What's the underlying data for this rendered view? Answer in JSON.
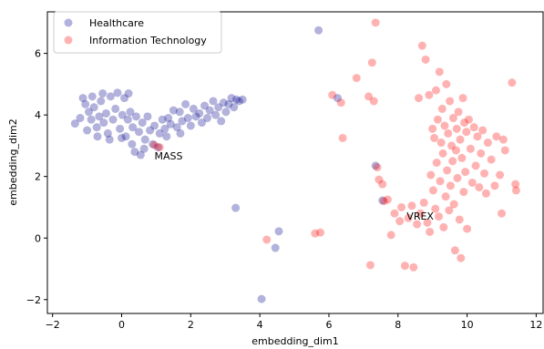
{
  "chart_data": {
    "type": "scatter",
    "title": "",
    "xlabel": "embedding_dim1",
    "ylabel": "embedding_dim2",
    "xlim": [
      -2.15,
      12.2
    ],
    "ylim": [
      -2.45,
      7.35
    ],
    "x_ticks": [
      -2,
      0,
      2,
      4,
      6,
      8,
      10,
      12
    ],
    "y_ticks": [
      -2,
      0,
      2,
      4,
      6
    ],
    "grid": false,
    "legend_position": "top-left",
    "series": [
      {
        "name": "Healthcare",
        "color": "#00008b",
        "alpha": 0.3,
        "points": [
          [
            -1.35,
            3.72
          ],
          [
            -1.2,
            3.9
          ],
          [
            -1.12,
            4.55
          ],
          [
            -1.05,
            4.35
          ],
          [
            -0.95,
            4.1
          ],
          [
            -0.88,
            3.85
          ],
          [
            -0.8,
            4.25
          ],
          [
            -0.72,
            3.6
          ],
          [
            -0.65,
            3.95
          ],
          [
            -0.6,
            4.45
          ],
          [
            -0.52,
            3.75
          ],
          [
            -0.45,
            4.05
          ],
          [
            -0.4,
            3.4
          ],
          [
            -0.32,
            4.6
          ],
          [
            -0.25,
            3.85
          ],
          [
            -0.18,
            4.2
          ],
          [
            -0.12,
            4.72
          ],
          [
            -0.05,
            3.55
          ],
          [
            0.02,
            4.0
          ],
          [
            0.08,
            4.55
          ],
          [
            0.12,
            3.3
          ],
          [
            0.18,
            3.85
          ],
          [
            0.25,
            4.1
          ],
          [
            0.32,
            3.6
          ],
          [
            0.38,
            2.8
          ],
          [
            0.42,
            3.95
          ],
          [
            0.5,
            3.45
          ],
          [
            0.55,
            2.7
          ],
          [
            0.6,
            3.75
          ],
          [
            0.68,
            3.2
          ],
          [
            0.75,
            3.95
          ],
          [
            0.82,
            3.5
          ],
          [
            0.9,
            3.05
          ],
          [
            0.95,
            3.65
          ],
          [
            1.05,
            2.95
          ],
          [
            1.1,
            3.4
          ],
          [
            1.18,
            3.85
          ],
          [
            1.25,
            3.55
          ],
          [
            1.35,
            3.9
          ],
          [
            1.42,
            3.7
          ],
          [
            1.5,
            4.15
          ],
          [
            1.6,
            3.6
          ],
          [
            1.68,
            4.1
          ],
          [
            1.75,
            3.8
          ],
          [
            1.85,
            4.35
          ],
          [
            1.92,
            3.9
          ],
          [
            2.0,
            3.65
          ],
          [
            2.08,
            4.2
          ],
          [
            2.15,
            3.95
          ],
          [
            2.25,
            4.05
          ],
          [
            2.32,
            3.75
          ],
          [
            2.4,
            4.3
          ],
          [
            2.48,
            3.9
          ],
          [
            2.55,
            4.15
          ],
          [
            2.65,
            4.45
          ],
          [
            2.72,
            4.0
          ],
          [
            2.8,
            4.25
          ],
          [
            2.88,
            3.8
          ],
          [
            2.95,
            4.4
          ],
          [
            3.02,
            4.1
          ],
          [
            3.1,
            4.35
          ],
          [
            3.18,
            4.55
          ],
          [
            3.25,
            4.25
          ],
          [
            3.32,
            4.5
          ],
          [
            3.4,
            4.45
          ],
          [
            3.5,
            4.5
          ],
          [
            -1.0,
            3.5
          ],
          [
            -0.7,
            3.3
          ],
          [
            -0.35,
            3.2
          ],
          [
            0.0,
            3.25
          ],
          [
            0.3,
            3.05
          ],
          [
            0.65,
            2.9
          ],
          [
            -0.55,
            4.7
          ],
          [
            0.2,
            4.7
          ],
          [
            -0.85,
            4.6
          ],
          [
            1.3,
            3.3
          ],
          [
            1.7,
            3.4
          ],
          [
            3.3,
            0.98
          ],
          [
            4.05,
            -1.98
          ],
          [
            4.45,
            -0.32
          ],
          [
            4.55,
            0.22
          ],
          [
            5.7,
            6.75
          ],
          [
            6.25,
            4.55
          ],
          [
            7.35,
            2.35
          ],
          [
            7.55,
            1.22
          ]
        ]
      },
      {
        "name": "Information Technology",
        "color": "#ff0000",
        "alpha": 0.3,
        "points": [
          [
            0.95,
            3.02
          ],
          [
            1.1,
            2.95
          ],
          [
            4.2,
            -0.05
          ],
          [
            5.6,
            0.15
          ],
          [
            5.75,
            0.18
          ],
          [
            6.1,
            4.65
          ],
          [
            6.35,
            4.4
          ],
          [
            6.4,
            3.25
          ],
          [
            6.8,
            5.2
          ],
          [
            7.15,
            4.6
          ],
          [
            7.2,
            -0.88
          ],
          [
            7.25,
            5.7
          ],
          [
            7.3,
            4.45
          ],
          [
            7.35,
            7.0
          ],
          [
            7.4,
            2.3
          ],
          [
            7.45,
            1.9
          ],
          [
            7.55,
            1.75
          ],
          [
            7.6,
            1.2
          ],
          [
            7.7,
            1.25
          ],
          [
            7.8,
            0.1
          ],
          [
            7.9,
            0.8
          ],
          [
            8.05,
            0.55
          ],
          [
            8.1,
            1.0
          ],
          [
            8.2,
            -0.9
          ],
          [
            8.3,
            0.65
          ],
          [
            8.4,
            1.05
          ],
          [
            8.45,
            -0.95
          ],
          [
            8.55,
            0.45
          ],
          [
            8.6,
            4.55
          ],
          [
            8.65,
            0.8
          ],
          [
            8.7,
            6.25
          ],
          [
            8.75,
            1.15
          ],
          [
            8.8,
            5.8
          ],
          [
            8.85,
            0.5
          ],
          [
            8.9,
            4.65
          ],
          [
            8.92,
            0.2
          ],
          [
            8.95,
            2.05
          ],
          [
            9.0,
            3.55
          ],
          [
            9.02,
            1.55
          ],
          [
            9.05,
            3.25
          ],
          [
            9.08,
            0.95
          ],
          [
            9.1,
            4.8
          ],
          [
            9.12,
            2.45
          ],
          [
            9.15,
            3.85
          ],
          [
            9.18,
            0.7
          ],
          [
            9.2,
            5.4
          ],
          [
            9.22,
            1.85
          ],
          [
            9.25,
            3.1
          ],
          [
            9.28,
            4.2
          ],
          [
            9.3,
            2.75
          ],
          [
            9.32,
            0.35
          ],
          [
            9.35,
            3.65
          ],
          [
            9.38,
            1.35
          ],
          [
            9.4,
            5.0
          ],
          [
            9.42,
            2.2
          ],
          [
            9.45,
            3.4
          ],
          [
            9.48,
            0.9
          ],
          [
            9.5,
            4.45
          ],
          [
            9.52,
            1.7
          ],
          [
            9.55,
            3.0
          ],
          [
            9.58,
            2.5
          ],
          [
            9.6,
            3.9
          ],
          [
            9.62,
            1.1
          ],
          [
            9.65,
            -0.4
          ],
          [
            9.68,
            2.85
          ],
          [
            9.7,
            3.55
          ],
          [
            9.72,
            1.95
          ],
          [
            9.75,
            4.1
          ],
          [
            9.78,
            0.6
          ],
          [
            9.8,
            3.2
          ],
          [
            9.82,
            -0.65
          ],
          [
            9.85,
            2.6
          ],
          [
            9.88,
            4.55
          ],
          [
            9.9,
            1.5
          ],
          [
            9.92,
            3.75
          ],
          [
            9.95,
            2.15
          ],
          [
            9.98,
            3.45
          ],
          [
            10.0,
            0.3
          ],
          [
            10.05,
            3.85
          ],
          [
            10.1,
            2.9
          ],
          [
            10.15,
            1.8
          ],
          [
            10.2,
            3.6
          ],
          [
            10.25,
            2.35
          ],
          [
            10.3,
            3.3
          ],
          [
            10.35,
            1.65
          ],
          [
            10.4,
            2.75
          ],
          [
            10.45,
            3.5
          ],
          [
            10.5,
            2.1
          ],
          [
            10.55,
            1.45
          ],
          [
            10.6,
            3.1
          ],
          [
            10.7,
            2.55
          ],
          [
            10.8,
            1.7
          ],
          [
            10.85,
            3.3
          ],
          [
            10.95,
            2.05
          ],
          [
            11.0,
            0.8
          ],
          [
            11.05,
            3.2
          ],
          [
            11.1,
            2.85
          ],
          [
            11.3,
            5.05
          ],
          [
            11.4,
            1.75
          ],
          [
            11.42,
            1.55
          ]
        ]
      }
    ],
    "annotations": [
      {
        "text": "MASS",
        "x": 0.95,
        "y": 2.55
      },
      {
        "text": "VREX",
        "x": 8.25,
        "y": 0.6
      }
    ]
  }
}
